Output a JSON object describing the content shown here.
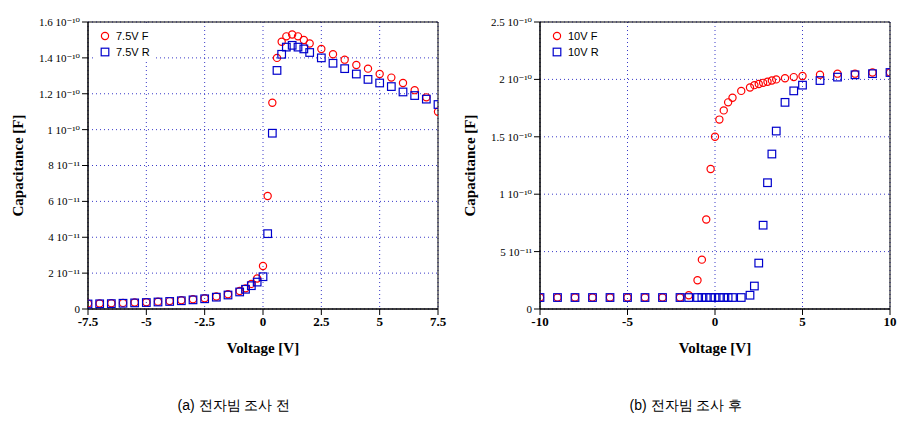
{
  "chart_data": [
    {
      "type": "scatter",
      "title": "(a) 전자빔 조사 전",
      "x_label": "Voltage [V]",
      "y_label": "Capacitance [F]",
      "grid": true,
      "legend": "upper left",
      "xlim": [
        -7.5,
        7.5
      ],
      "xticks": [
        -7.5,
        -5,
        -2.5,
        0,
        2.5,
        5,
        7.5
      ],
      "ylim": [
        0,
        1.6e-10
      ],
      "yticks": [
        0,
        {
          "value": 2e-11,
          "label": "2 10⁻¹¹"
        },
        {
          "value": 4e-11,
          "label": "4 10⁻¹¹"
        },
        {
          "value": 6e-11,
          "label": "6 10⁻¹¹"
        },
        {
          "value": 8e-11,
          "label": "8 10⁻¹¹"
        },
        {
          "value": 1e-10,
          "label": "1 10⁻¹⁰"
        },
        {
          "value": 1.2e-10,
          "label": "1.2 10⁻¹⁰"
        },
        {
          "value": 1.4e-10,
          "label": "1.4 10⁻¹⁰"
        },
        {
          "value": 1.6e-10,
          "label": "1.6 10⁻¹⁰"
        }
      ],
      "x": [
        -7.5,
        -7,
        -6.5,
        -6,
        -5.5,
        -5,
        -4.5,
        -4,
        -3.5,
        -3,
        -2.5,
        -2,
        -1.5,
        -1,
        -0.75,
        -0.5,
        -0.25,
        0,
        0.2,
        0.4,
        0.6,
        0.8,
        1,
        1.25,
        1.5,
        1.75,
        2,
        2.5,
        3,
        3.5,
        4,
        4.5,
        5,
        5.5,
        6,
        6.5,
        7,
        7.5
      ],
      "series": [
        {
          "name": "7.5V F",
          "color": "#ff0000",
          "marker": "circle",
          "values": [
            3e-12,
            3.1e-12,
            3.2e-12,
            3.4e-12,
            3.6e-12,
            3.8e-12,
            4.1e-12,
            4.4e-12,
            4.9e-12,
            5.4e-12,
            6e-12,
            7e-12,
            8.2e-12,
            1e-11,
            1.15e-11,
            1.4e-11,
            1.7e-11,
            2.4e-11,
            6.3e-11,
            1.15e-10,
            1.4e-10,
            1.49e-10,
            1.52e-10,
            1.53e-10,
            1.52e-10,
            1.5e-10,
            1.48e-10,
            1.45e-10,
            1.42e-10,
            1.39e-10,
            1.36e-10,
            1.34e-10,
            1.31e-10,
            1.29e-10,
            1.26e-10,
            1.22e-10,
            1.18e-10,
            1.1e-10
          ]
        },
        {
          "name": "7.5V R",
          "color": "#0000cc",
          "marker": "square",
          "values": [
            2.8e-12,
            2.9e-12,
            3e-12,
            3.2e-12,
            3.4e-12,
            3.6e-12,
            3.9e-12,
            4.2e-12,
            4.6e-12,
            5.1e-12,
            5.7e-12,
            6.6e-12,
            7.8e-12,
            9.5e-12,
            1.1e-11,
            1.3e-11,
            1.5e-11,
            1.8e-11,
            4.2e-11,
            9.8e-11,
            1.33e-10,
            1.42e-10,
            1.46e-10,
            1.47e-10,
            1.46e-10,
            1.45e-10,
            1.43e-10,
            1.4e-10,
            1.37e-10,
            1.34e-10,
            1.31e-10,
            1.28e-10,
            1.26e-10,
            1.24e-10,
            1.21e-10,
            1.19e-10,
            1.17e-10,
            1.14e-10
          ]
        }
      ]
    },
    {
      "type": "scatter",
      "title": "(b) 전자빔 조사 후",
      "x_label": "Voltage [V]",
      "y_label": "Capacitance [F]",
      "grid": true,
      "legend": "upper left",
      "xlim": [
        -10,
        10
      ],
      "xticks": [
        -10,
        -5,
        0,
        5,
        10
      ],
      "ylim": [
        0,
        2.5e-10
      ],
      "yticks": [
        0,
        {
          "value": 5e-11,
          "label": "5 10⁻¹¹"
        },
        {
          "value": 1e-10,
          "label": "1 10⁻¹⁰"
        },
        {
          "value": 1.5e-10,
          "label": "1.5 10⁻¹⁰"
        },
        {
          "value": 2e-10,
          "label": "2 10⁻¹⁰"
        },
        {
          "value": 2.5e-10,
          "label": "2.5 10⁻¹⁰"
        }
      ],
      "x": [
        -10,
        -9,
        -8,
        -7,
        -6,
        -5,
        -4,
        -3,
        -2,
        -1.5,
        -1,
        -0.75,
        -0.5,
        -0.25,
        0,
        0.25,
        0.5,
        0.75,
        1,
        1.5,
        2,
        2.25,
        2.5,
        2.75,
        3,
        3.25,
        3.5,
        4,
        4.5,
        5,
        6,
        7,
        8,
        9,
        10
      ],
      "series": [
        {
          "name": "10V F",
          "color": "#ff0000",
          "marker": "circle",
          "values": [
            1e-11,
            1e-11,
            1e-11,
            1e-11,
            1e-11,
            1e-11,
            1e-11,
            1e-11,
            1e-11,
            1.2e-11,
            2.5e-11,
            4.3e-11,
            7.8e-11,
            1.22e-10,
            1.5e-10,
            1.65e-10,
            1.73e-10,
            1.8e-10,
            1.84e-10,
            1.9e-10,
            1.93e-10,
            1.95e-10,
            1.96e-10,
            1.97e-10,
            1.98e-10,
            1.99e-10,
            2e-10,
            2.01e-10,
            2.02e-10,
            2.03e-10,
            2.04e-10,
            2.05e-10,
            2.05e-10,
            2.06e-10,
            2.06e-10
          ]
        },
        {
          "name": "10V R",
          "color": "#0000cc",
          "marker": "square",
          "values": [
            1e-11,
            1e-11,
            1e-11,
            1e-11,
            1e-11,
            1e-11,
            1e-11,
            1e-11,
            1e-11,
            1e-11,
            1e-11,
            1e-11,
            1e-11,
            1e-11,
            1e-11,
            1e-11,
            1e-11,
            1e-11,
            1e-11,
            1e-11,
            1.2e-11,
            2e-11,
            4e-11,
            7.3e-11,
            1.1e-10,
            1.35e-10,
            1.55e-10,
            1.8e-10,
            1.9e-10,
            1.95e-10,
            1.99e-10,
            2.02e-10,
            2.04e-10,
            2.05e-10,
            2.06e-10
          ]
        }
      ]
    }
  ]
}
